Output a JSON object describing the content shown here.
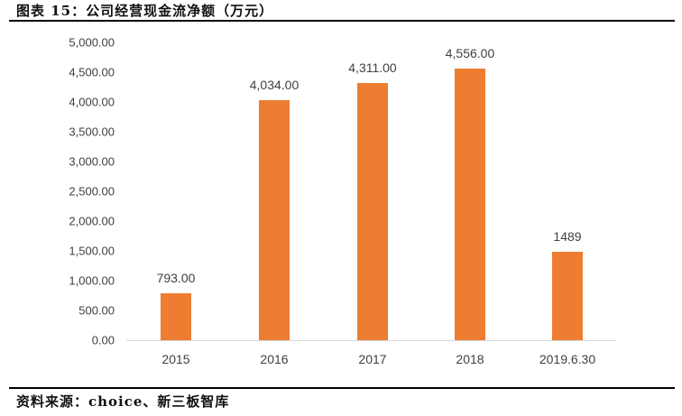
{
  "header": {
    "title": "图表 15：公司经营现金流净额（万元）"
  },
  "footer": {
    "source": "资料来源：choice、新三板智库"
  },
  "colors": {
    "bar": "#ED7D31",
    "axis": "#D9D9D9",
    "text": "#404040"
  },
  "chart_data": {
    "type": "bar",
    "title": "图表 15：公司经营现金流净额（万元）",
    "xlabel": "",
    "ylabel": "",
    "categories": [
      "2015",
      "2016",
      "2017",
      "2018",
      "2019.6.30"
    ],
    "values": [
      793.0,
      4034.0,
      4311.0,
      4556.0,
      1489
    ],
    "data_labels": [
      "793.00",
      "4,034.00",
      "4,311.00",
      "4,556.00",
      "1489"
    ],
    "ylim": [
      0,
      5000
    ],
    "yticks": [
      "0.00",
      "500.00",
      "1,000.00",
      "1,500.00",
      "2,000.00",
      "2,500.00",
      "3,000.00",
      "3,500.00",
      "4,000.00",
      "4,500.00",
      "5,000.00"
    ],
    "grid": false,
    "legend": "none",
    "source": "资料来源：choice、新三板智库"
  }
}
